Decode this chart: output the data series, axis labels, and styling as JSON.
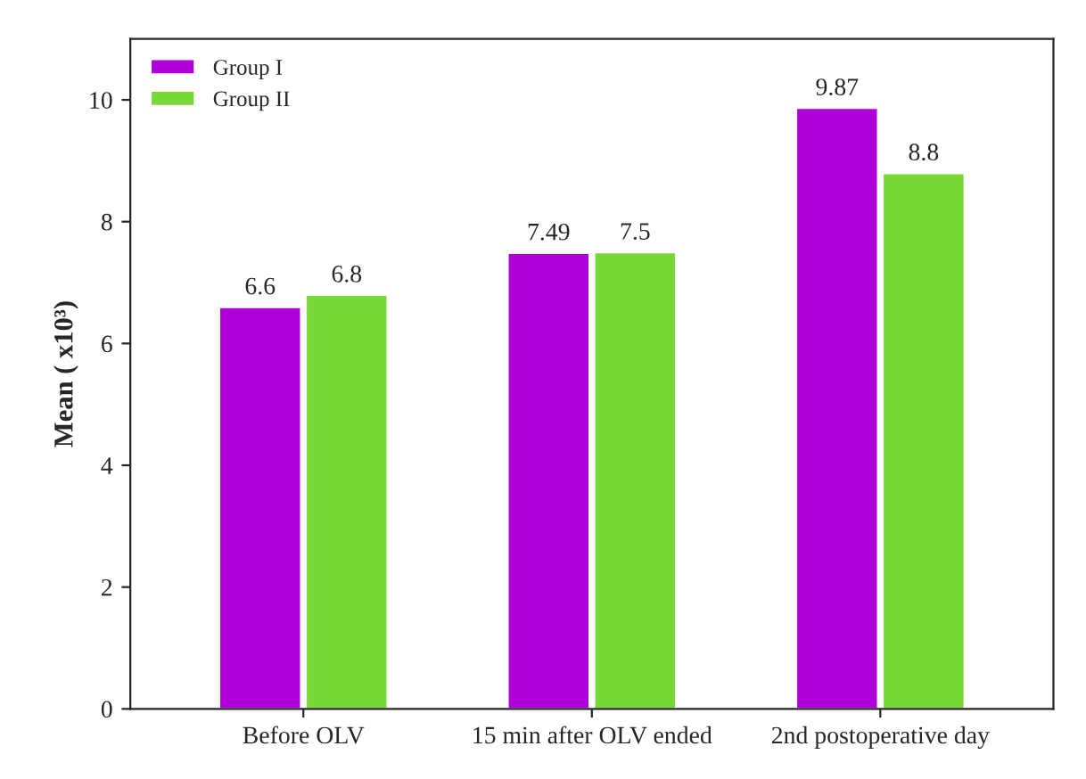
{
  "chart_data": {
    "type": "bar",
    "ylabel": "Mean ( x10³)",
    "categories": [
      "Before OLV",
      "15 min after OLV ended",
      "2nd postoperative day"
    ],
    "series": [
      {
        "name": "Group I",
        "color": "#b000d8",
        "values": [
          6.6,
          7.49,
          9.87
        ]
      },
      {
        "name": "Group II",
        "color": "#78d838",
        "values": [
          6.8,
          7.5,
          8.8
        ]
      }
    ],
    "ylim": [
      0,
      11
    ],
    "yticks": [
      0,
      2,
      4,
      6,
      8,
      10
    ],
    "data_labels": true,
    "legend": "top left",
    "grid": false
  }
}
